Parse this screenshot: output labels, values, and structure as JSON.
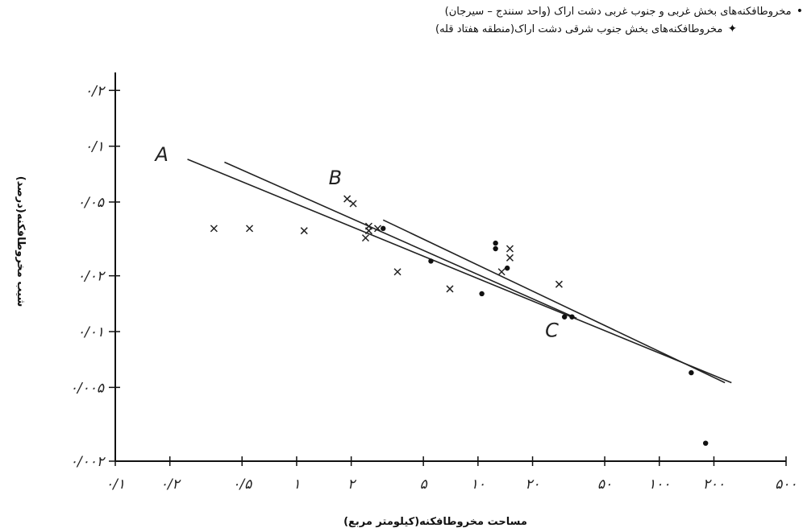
{
  "chart_data": {
    "type": "scatter",
    "x_scale": "log",
    "y_scale": "log",
    "xlabel": "مساحت مخروطافکنه(کیلومتر مربع)",
    "ylabel": "شیب مخروطافکنه(درصد)",
    "x_ticks": [
      {
        "value": 0.1,
        "label": "٠/١"
      },
      {
        "value": 0.2,
        "label": "٠/٢"
      },
      {
        "value": 0.5,
        "label": "٠/۵"
      },
      {
        "value": 1,
        "label": "١"
      },
      {
        "value": 2,
        "label": "٢"
      },
      {
        "value": 5,
        "label": "۵"
      },
      {
        "value": 10,
        "label": "١٠"
      },
      {
        "value": 20,
        "label": "٢٠"
      },
      {
        "value": 50,
        "label": "۵٠"
      },
      {
        "value": 100,
        "label": "١٠٠"
      },
      {
        "value": 200,
        "label": "٢٠٠"
      },
      {
        "value": 500,
        "label": "۵٠٠"
      }
    ],
    "y_ticks": [
      {
        "value": 0.2,
        "label": "٠/٢"
      },
      {
        "value": 0.1,
        "label": "٠/١"
      },
      {
        "value": 0.05,
        "label": "٠/٠۵"
      },
      {
        "value": 0.02,
        "label": "٠/٠٢"
      },
      {
        "value": 0.01,
        "label": "٠/٠١"
      },
      {
        "value": 0.005,
        "label": "٠/٠٠۵"
      },
      {
        "value": 0.002,
        "label": "٠/٠٠٢"
      }
    ],
    "legend": [
      {
        "symbol": "•",
        "label": "مخروطافکنه‌های بخش غربی و جنوب غربی دشت اراک (واحد سنندج – سیرجان)"
      },
      {
        "symbol": "✦",
        "label": "مخروطافکنه‌های بخش جنوب شرقی دشت اراک(منطقه هفتاد قله)"
      }
    ],
    "series": [
      {
        "marker": "cross",
        "points": [
          [
            0.35,
            0.036
          ],
          [
            0.55,
            0.036
          ],
          [
            1.1,
            0.035
          ],
          [
            1.9,
            0.052
          ],
          [
            2.05,
            0.049
          ],
          [
            2.4,
            0.032
          ],
          [
            2.5,
            0.037
          ],
          [
            2.5,
            0.035
          ],
          [
            2.8,
            0.036
          ],
          [
            3.6,
            0.021
          ],
          [
            7.0,
            0.017
          ],
          [
            13.5,
            0.021
          ],
          [
            15.0,
            0.028
          ],
          [
            15.0,
            0.025
          ],
          [
            28.0,
            0.018
          ]
        ]
      },
      {
        "marker": "dot",
        "points": [
          [
            3.0,
            0.036
          ],
          [
            5.5,
            0.024
          ],
          [
            10.5,
            0.016
          ],
          [
            12.5,
            0.028
          ],
          [
            12.5,
            0.03
          ],
          [
            14.5,
            0.022
          ],
          [
            30.0,
            0.012
          ],
          [
            33.0,
            0.012
          ],
          [
            150.0,
            0.006
          ],
          [
            180.0,
            0.0025
          ]
        ]
      }
    ],
    "lines": [
      {
        "label": "A",
        "from": [
          0.25,
          0.085
        ],
        "to": [
          250.0,
          0.0053
        ]
      },
      {
        "label": "B",
        "from": [
          0.4,
          0.082
        ],
        "to": [
          35.0,
          0.0118
        ]
      },
      {
        "label": "C",
        "from": [
          3.0,
          0.04
        ],
        "to": [
          230.0,
          0.0053
        ]
      }
    ]
  }
}
